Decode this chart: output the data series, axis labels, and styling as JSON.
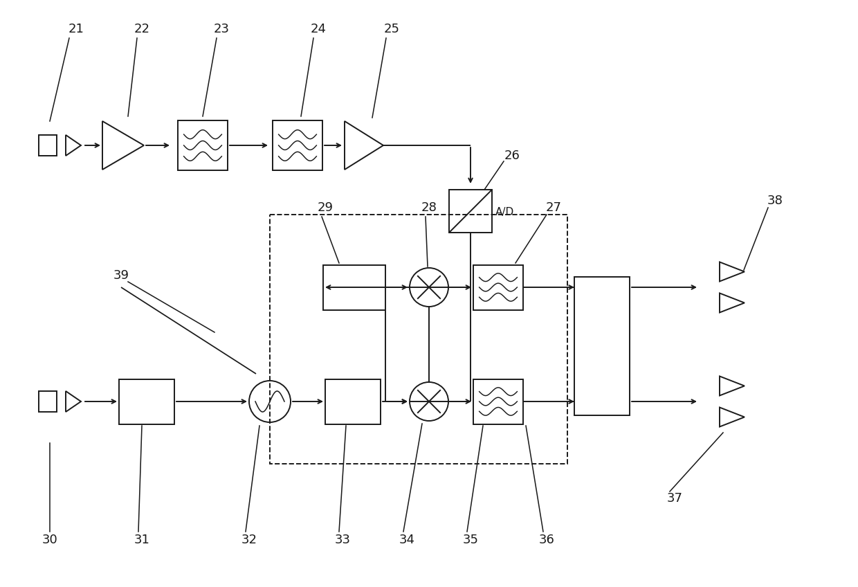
{
  "bg_color": "#ffffff",
  "line_color": "#1a1a1a",
  "lw": 1.4,
  "fig_w": 12.4,
  "fig_h": 8.48,
  "dpi": 100
}
